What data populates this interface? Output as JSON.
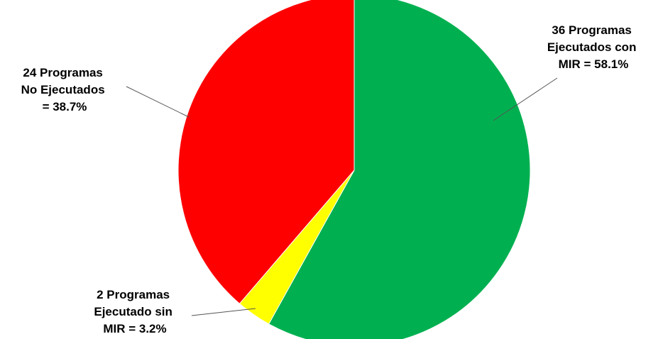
{
  "chart_data": {
    "type": "pie",
    "title": "",
    "slices": [
      {
        "value": 36,
        "percent": 58.1,
        "color": "#00B050",
        "label_lines": [
          "36 Programas",
          "Ejecutados con",
          "MIR = 58.1%"
        ]
      },
      {
        "value": 2,
        "percent": 3.2,
        "color": "#FFFF00",
        "label_lines": [
          "2 Programas",
          "Ejecutado sin",
          "MIR  = 3.2%"
        ]
      },
      {
        "value": 24,
        "percent": 38.7,
        "color": "#FF0000",
        "label_lines": [
          "24 Programas",
          "No Ejecutados",
          "= 38.7%"
        ]
      }
    ],
    "start": "12 o'clock",
    "direction": "clockwise"
  }
}
